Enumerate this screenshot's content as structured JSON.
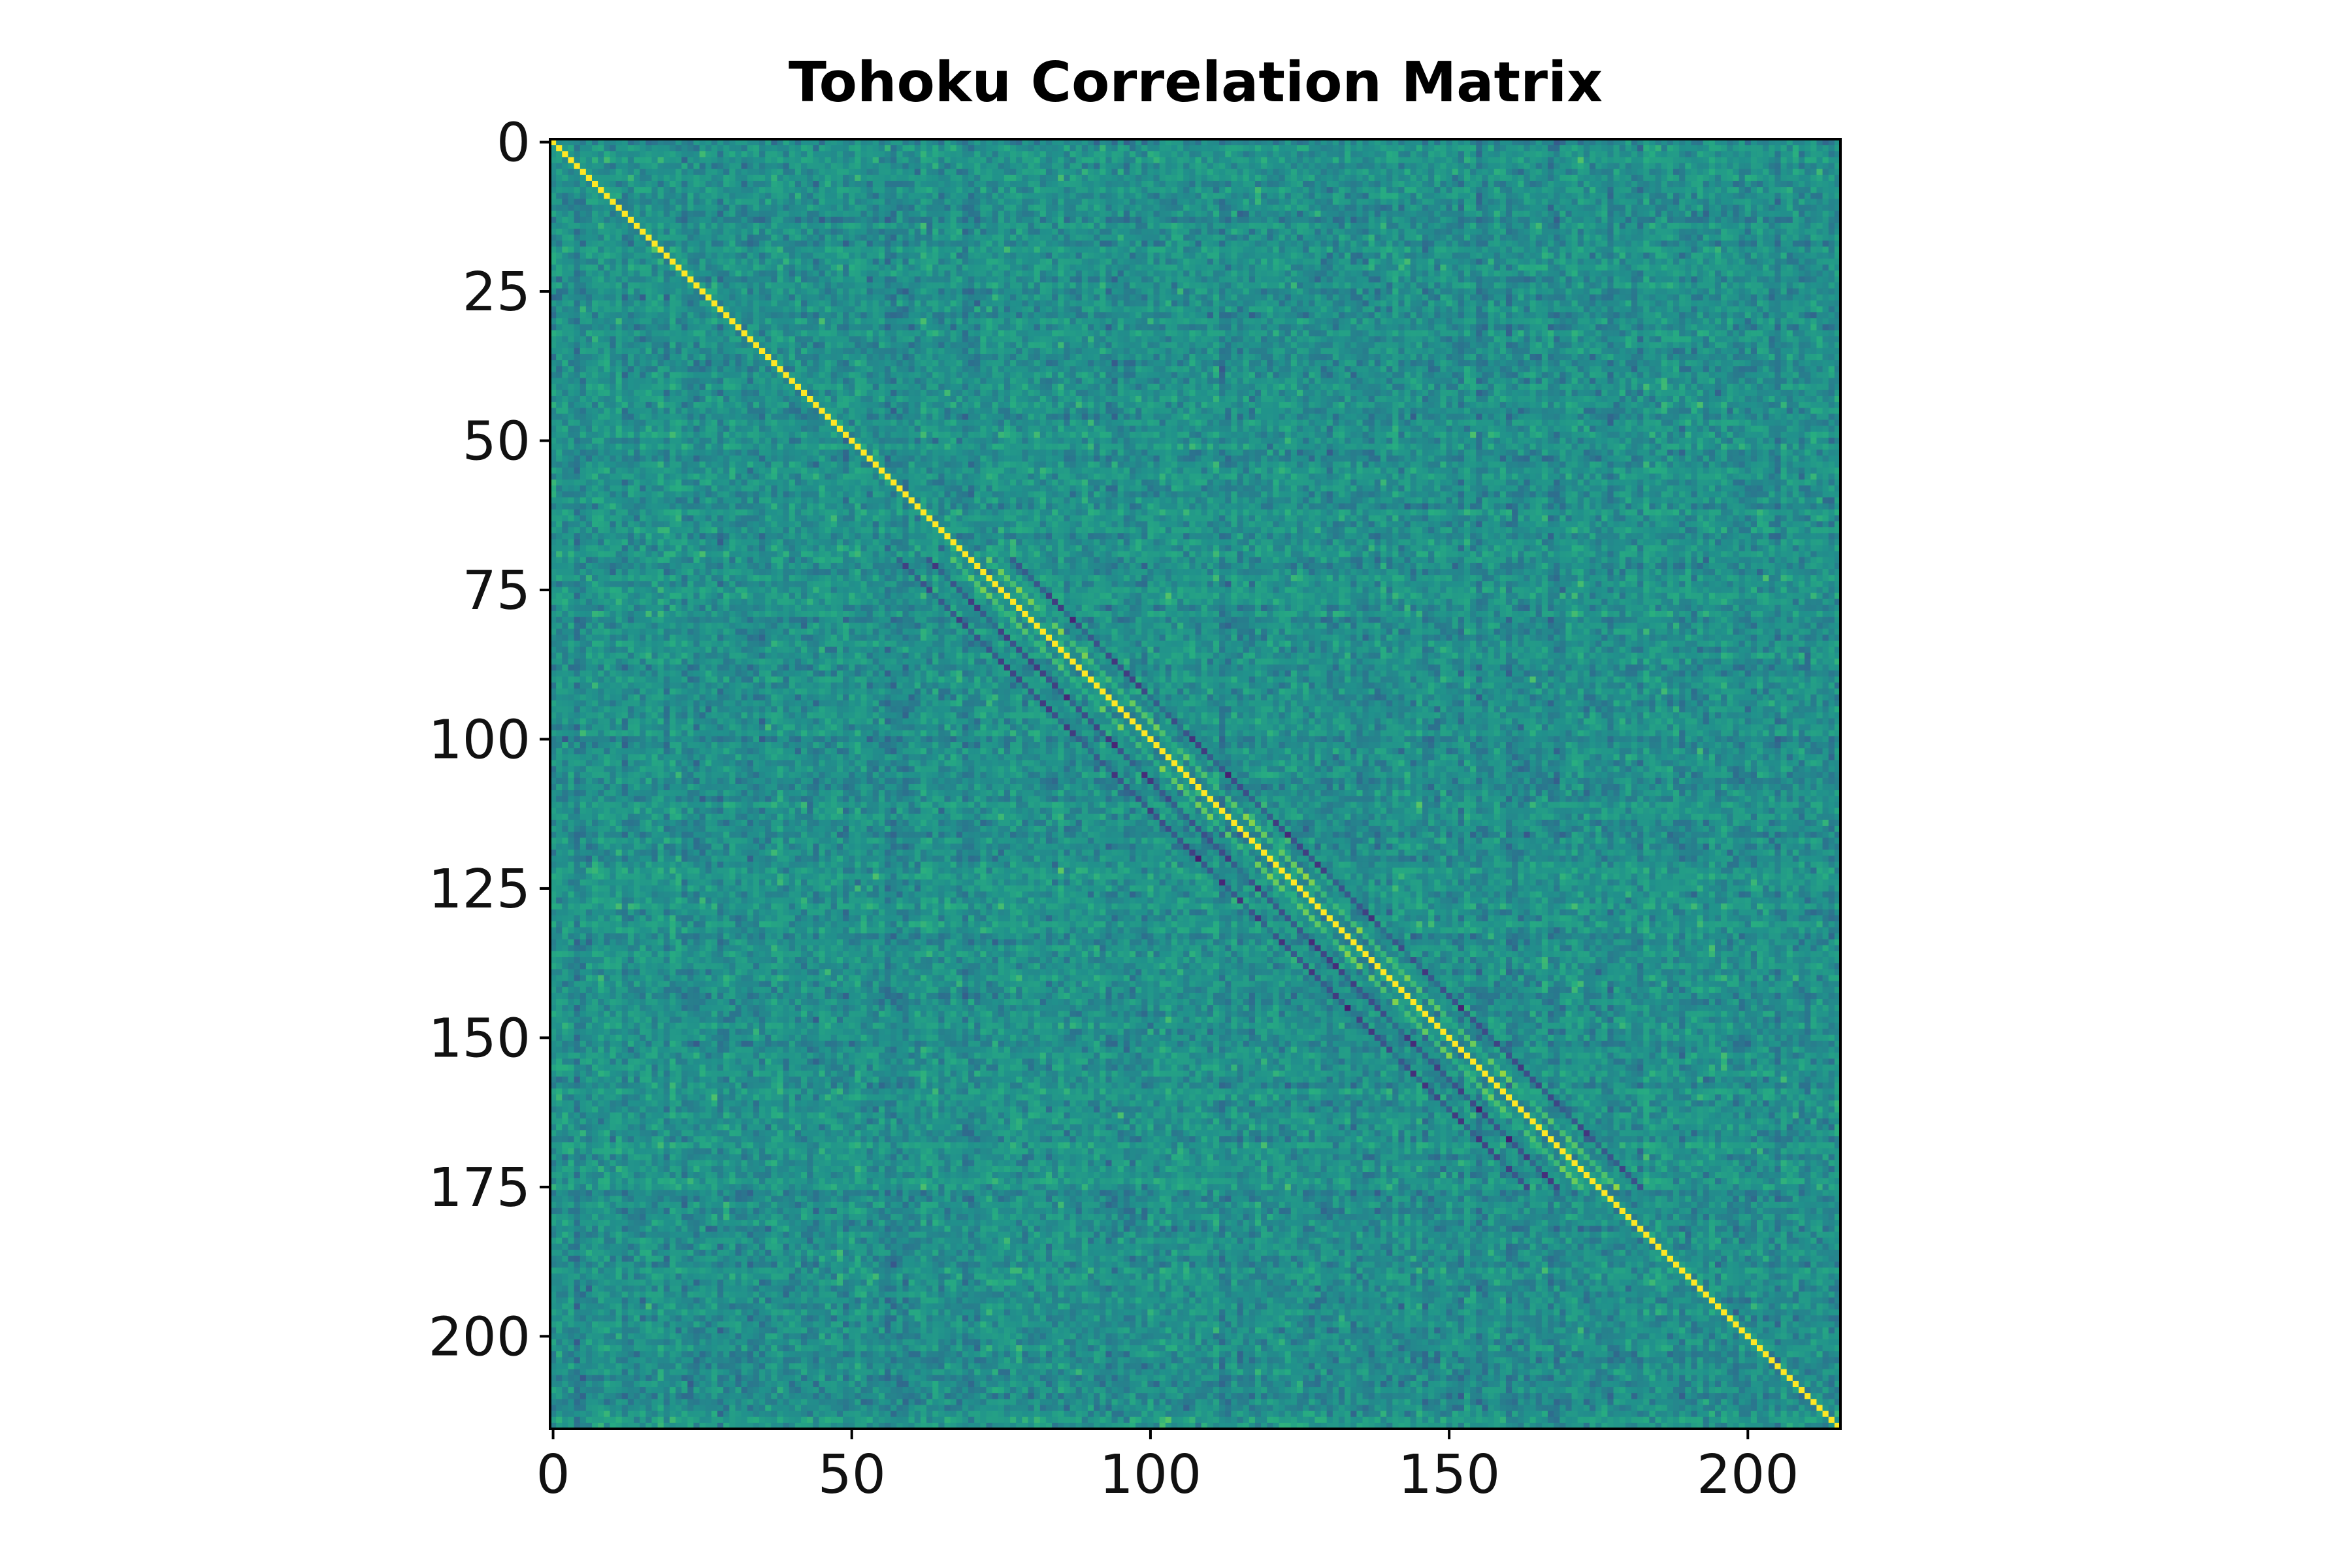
{
  "chart_data": {
    "type": "heatmap",
    "title": "Tohoku Correlation Matrix",
    "xlabel": "",
    "ylabel": "",
    "matrix_size": 216,
    "xlim": [
      -0.5,
      215.5
    ],
    "ylim": [
      215.5,
      -0.5
    ],
    "x_ticks": [
      0,
      50,
      100,
      150,
      200
    ],
    "y_ticks": [
      0,
      25,
      50,
      75,
      100,
      125,
      150,
      175,
      200
    ],
    "value_range": [
      -1,
      1
    ],
    "diagonal_value": 1,
    "colormap": "viridis",
    "colorbar": false,
    "grid": false
  },
  "colors": {
    "low": "#440154",
    "mid": "#21918c",
    "high": "#fde725",
    "axes": "#000000"
  }
}
